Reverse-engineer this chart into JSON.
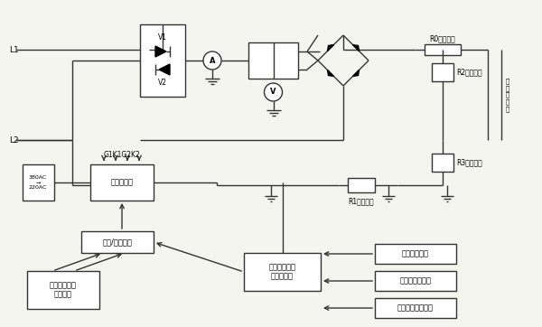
{
  "bg_color": "#f5f5f0",
  "line_color": "#333333",
  "box_color": "#ffffff",
  "title": "",
  "labels": {
    "L1": "L1",
    "L2": "L2",
    "V1": "V1",
    "V2": "V2",
    "G1K1G2K2": "G1K1G2K2",
    "R0": "R0阻尼電阻",
    "R1": "R1電流取樣",
    "R2": "R2電壓取樣",
    "R3": "R3電壓取樣",
    "microcontroller": "微機控制器",
    "manual_auto": "手動/自動切換",
    "hv_param_manual": "高壓電場參數\n手動設定",
    "hv_auto_ctrl": "高壓電場參數\n自動控制器",
    "load_feedback": "負荷反饋模塊",
    "water_coal_feedback": "水煤比反饋模塊",
    "dust_feedback": "煙塵含量反饋模塊",
    "elec_body": "電除塵本體",
    "380AC": "380AC",
    "220AC": "220AC"
  }
}
